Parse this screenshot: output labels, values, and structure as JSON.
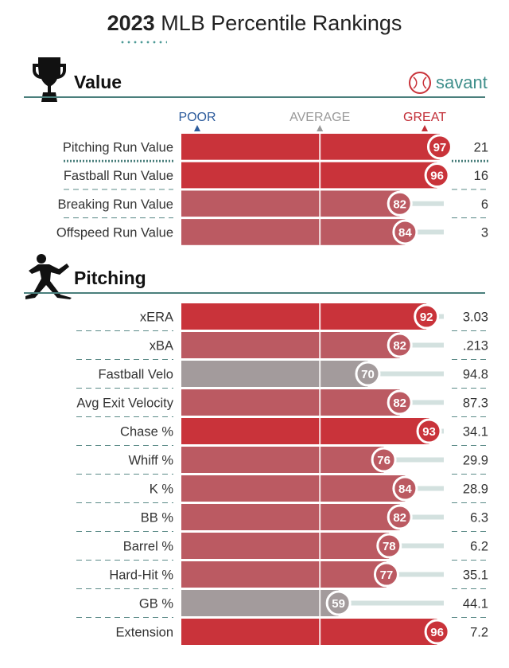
{
  "header": {
    "year": "2023",
    "title_rest": "MLB Percentile Rankings"
  },
  "value_section": {
    "title": "Value",
    "brand": "savant",
    "icon": "trophy-icon"
  },
  "pitching_section": {
    "title": "Pitching",
    "icon": "pitcher-icon"
  },
  "scale_labels": {
    "poor": "POOR",
    "average": "AVERAGE",
    "great": "GREAT"
  },
  "colors": {
    "great": "#c9333a",
    "good": "#bb5a62",
    "neutral": "#a39b9c",
    "poor_label": "#2c5b9c",
    "average_label": "#9a9a9a",
    "great_label": "#c22e37",
    "accent": "#4a7f7c"
  },
  "chart_data": [
    {
      "type": "bar",
      "title": "Value",
      "xlim": [
        0,
        100
      ],
      "categories": [
        "Pitching Run Value",
        "Fastball Run Value",
        "Breaking Run Value",
        "Offspeed Run Value"
      ],
      "percentiles": [
        97,
        96,
        82,
        84
      ],
      "stat_values": [
        "21",
        "16",
        "6",
        "3"
      ]
    },
    {
      "type": "bar",
      "title": "Pitching",
      "xlim": [
        0,
        100
      ],
      "categories": [
        "xERA",
        "xBA",
        "Fastball Velo",
        "Avg Exit Velocity",
        "Chase %",
        "Whiff %",
        "K %",
        "BB %",
        "Barrel %",
        "Hard-Hit %",
        "GB %",
        "Extension"
      ],
      "percentiles": [
        92,
        82,
        70,
        82,
        93,
        76,
        84,
        82,
        78,
        77,
        59,
        96
      ],
      "stat_values": [
        "3.03",
        ".213",
        "94.8",
        "87.3",
        "34.1",
        "29.9",
        "28.9",
        "6.3",
        "6.2",
        "35.1",
        "44.1",
        "7.2"
      ]
    }
  ]
}
